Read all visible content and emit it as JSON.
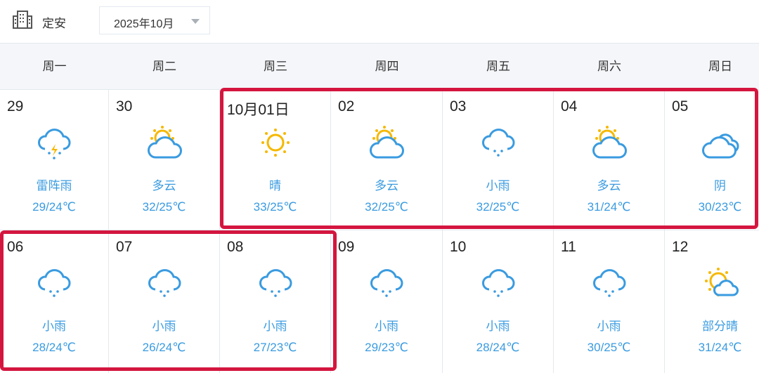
{
  "header": {
    "city": "定安",
    "month": "2025年10月"
  },
  "weekdays": [
    "周一",
    "周二",
    "周三",
    "周四",
    "周五",
    "周六",
    "周日"
  ],
  "colors": {
    "accent": "#3a9be0",
    "highlight": "#d4163f",
    "sun": "#f5b800"
  },
  "rows": [
    [
      {
        "day": "29",
        "icon": "thunderstorm",
        "desc": "雷阵雨",
        "temp": "29/24℃"
      },
      {
        "day": "30",
        "icon": "cloudy",
        "desc": "多云",
        "temp": "32/25℃"
      },
      {
        "day": "10月01日",
        "icon": "sunny",
        "desc": "晴",
        "temp": "33/25℃"
      },
      {
        "day": "02",
        "icon": "cloudy",
        "desc": "多云",
        "temp": "32/25℃"
      },
      {
        "day": "03",
        "icon": "light-rain",
        "desc": "小雨",
        "temp": "32/25℃"
      },
      {
        "day": "04",
        "icon": "cloudy",
        "desc": "多云",
        "temp": "31/24℃"
      },
      {
        "day": "05",
        "icon": "overcast",
        "desc": "阴",
        "temp": "30/23℃"
      }
    ],
    [
      {
        "day": "06",
        "icon": "light-rain",
        "desc": "小雨",
        "temp": "28/24℃"
      },
      {
        "day": "07",
        "icon": "light-rain",
        "desc": "小雨",
        "temp": "26/24℃"
      },
      {
        "day": "08",
        "icon": "light-rain",
        "desc": "小雨",
        "temp": "27/23℃"
      },
      {
        "day": "09",
        "icon": "light-rain",
        "desc": "小雨",
        "temp": "29/23℃"
      },
      {
        "day": "10",
        "icon": "light-rain",
        "desc": "小雨",
        "temp": "28/24℃"
      },
      {
        "day": "11",
        "icon": "light-rain",
        "desc": "小雨",
        "temp": "30/25℃"
      },
      {
        "day": "12",
        "icon": "partly-sunny",
        "desc": "部分晴",
        "temp": "31/24℃"
      }
    ]
  ]
}
